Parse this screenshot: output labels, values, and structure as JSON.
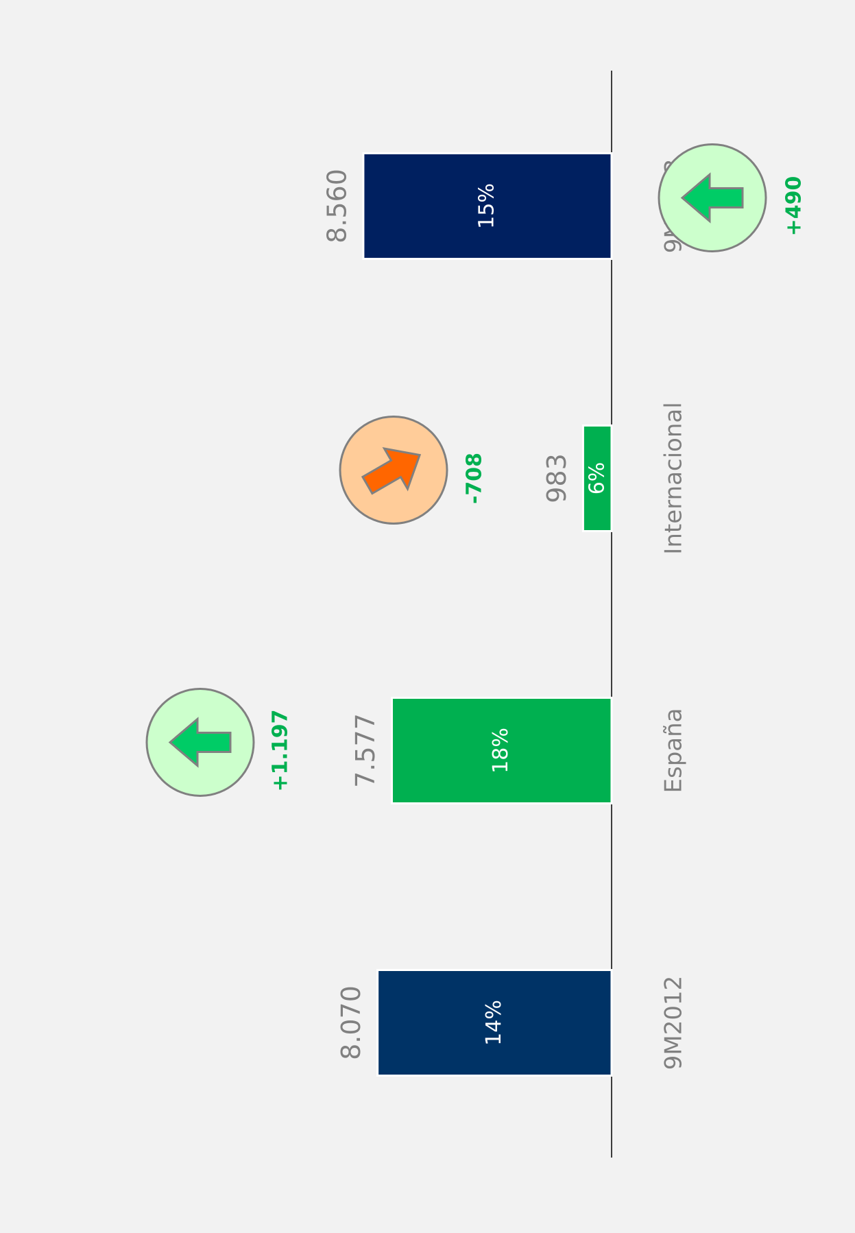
{
  "chart_data": {
    "type": "bar",
    "categories": [
      "9M2012",
      "España",
      "Internacional",
      "9M2013"
    ],
    "values": [
      8070,
      7577,
      983,
      8560
    ],
    "value_labels": [
      "8.070",
      "7.577",
      "983",
      "8.560"
    ],
    "colors": [
      "#003366",
      "#00b050",
      "#00b050",
      "#002060"
    ],
    "shares": [
      14,
      18,
      6,
      15
    ],
    "share_labels": [
      "14%",
      "18%",
      "6%",
      "15%"
    ],
    "changes": [
      null,
      1197,
      -708,
      490
    ],
    "change_labels": [
      null,
      "+1.197",
      "-708",
      "+490"
    ],
    "ylim": [
      0,
      10000
    ]
  }
}
